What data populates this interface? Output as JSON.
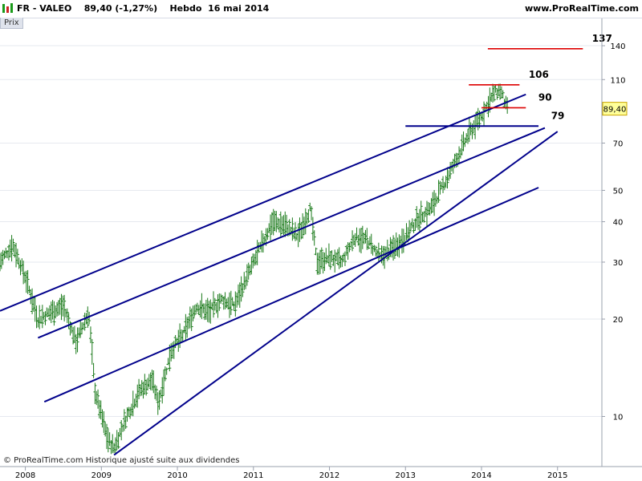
{
  "header": {
    "instrument": "FR - VALEO",
    "quote": "89,40 (-1,27%)",
    "period": "Hebdo",
    "date": "16 mai 2014",
    "site": "www.ProRealTime.com"
  },
  "panel_label": "Prix",
  "footer": "© ProRealTime.com Historique ajusté suite aux dividendes",
  "colors": {
    "price_bars": "#1a7a1a",
    "trend_lines": "#00008b",
    "resistance": "#dd0000",
    "last_price_tag": "#ffff99"
  },
  "chart_data": {
    "type": "ohlc",
    "y_scale": "log",
    "ylim": [
      7,
      170
    ],
    "xlim": [
      "2007-09",
      "2015-08"
    ],
    "x_ticks": [
      "2008",
      "2009",
      "2010",
      "2011",
      "2012",
      "2013",
      "2014",
      "2015"
    ],
    "y_ticks": [
      10,
      20,
      30,
      40,
      50,
      70,
      110,
      140
    ],
    "last_price": "89,40",
    "series": [
      {
        "x": "2007-09",
        "y": 30
      },
      {
        "x": "2007-11",
        "y": 34
      },
      {
        "x": "2008-01",
        "y": 27
      },
      {
        "x": "2008-03",
        "y": 20
      },
      {
        "x": "2008-05",
        "y": 21
      },
      {
        "x": "2008-07",
        "y": 22
      },
      {
        "x": "2008-09",
        "y": 17
      },
      {
        "x": "2008-11",
        "y": 21
      },
      {
        "x": "2008-12",
        "y": 12
      },
      {
        "x": "2009-02",
        "y": 8.5
      },
      {
        "x": "2009-03",
        "y": 8
      },
      {
        "x": "2009-05",
        "y": 10
      },
      {
        "x": "2009-07",
        "y": 12
      },
      {
        "x": "2009-09",
        "y": 13
      },
      {
        "x": "2009-10",
        "y": 11
      },
      {
        "x": "2009-12",
        "y": 16
      },
      {
        "x": "2010-02",
        "y": 18
      },
      {
        "x": "2010-04",
        "y": 22
      },
      {
        "x": "2010-06",
        "y": 21
      },
      {
        "x": "2010-08",
        "y": 23
      },
      {
        "x": "2010-10",
        "y": 22
      },
      {
        "x": "2010-12",
        "y": 27
      },
      {
        "x": "2011-02",
        "y": 33
      },
      {
        "x": "2011-04",
        "y": 40
      },
      {
        "x": "2011-06",
        "y": 39
      },
      {
        "x": "2011-08",
        "y": 36
      },
      {
        "x": "2011-10",
        "y": 44
      },
      {
        "x": "2011-11",
        "y": 30
      },
      {
        "x": "2012-01",
        "y": 31
      },
      {
        "x": "2012-03",
        "y": 30
      },
      {
        "x": "2012-05",
        "y": 36
      },
      {
        "x": "2012-07",
        "y": 35
      },
      {
        "x": "2012-09",
        "y": 31
      },
      {
        "x": "2012-11",
        "y": 33
      },
      {
        "x": "2013-01",
        "y": 36
      },
      {
        "x": "2013-03",
        "y": 41
      },
      {
        "x": "2013-05",
        "y": 44
      },
      {
        "x": "2013-07",
        "y": 52
      },
      {
        "x": "2013-09",
        "y": 62
      },
      {
        "x": "2013-11",
        "y": 75
      },
      {
        "x": "2014-01",
        "y": 85
      },
      {
        "x": "2014-03",
        "y": 100
      },
      {
        "x": "2014-04",
        "y": 102
      },
      {
        "x": "2014-05",
        "y": 89.4
      }
    ],
    "trend_lines": [
      {
        "from": [
          "2007-09",
          21.2
        ],
        "to": [
          "2014-08",
          99
        ]
      },
      {
        "from": [
          "2008-03",
          17.5
        ],
        "to": [
          "2014-11",
          78
        ]
      },
      {
        "from": [
          "2008-04",
          11.1
        ],
        "to": [
          "2014-10",
          51
        ]
      },
      {
        "from": [
          "2009-03",
          7.6
        ],
        "to": [
          "2015-01",
          76
        ]
      }
    ],
    "levels": [
      {
        "value": 137,
        "label": "137",
        "color": "#dd0000",
        "x_from": "2014-02",
        "x_to": "2015-05"
      },
      {
        "value": 106,
        "label": "106",
        "color": "#dd0000",
        "x_from": "2013-11",
        "x_to": "2014-07"
      },
      {
        "value": 90,
        "label": "90",
        "color": "#dd0000",
        "x_from": "2014-01",
        "x_to": "2014-08"
      },
      {
        "value": 79,
        "label": "79",
        "color": "#00008b",
        "x_from": "2013-01",
        "x_to": "2014-10"
      }
    ]
  }
}
